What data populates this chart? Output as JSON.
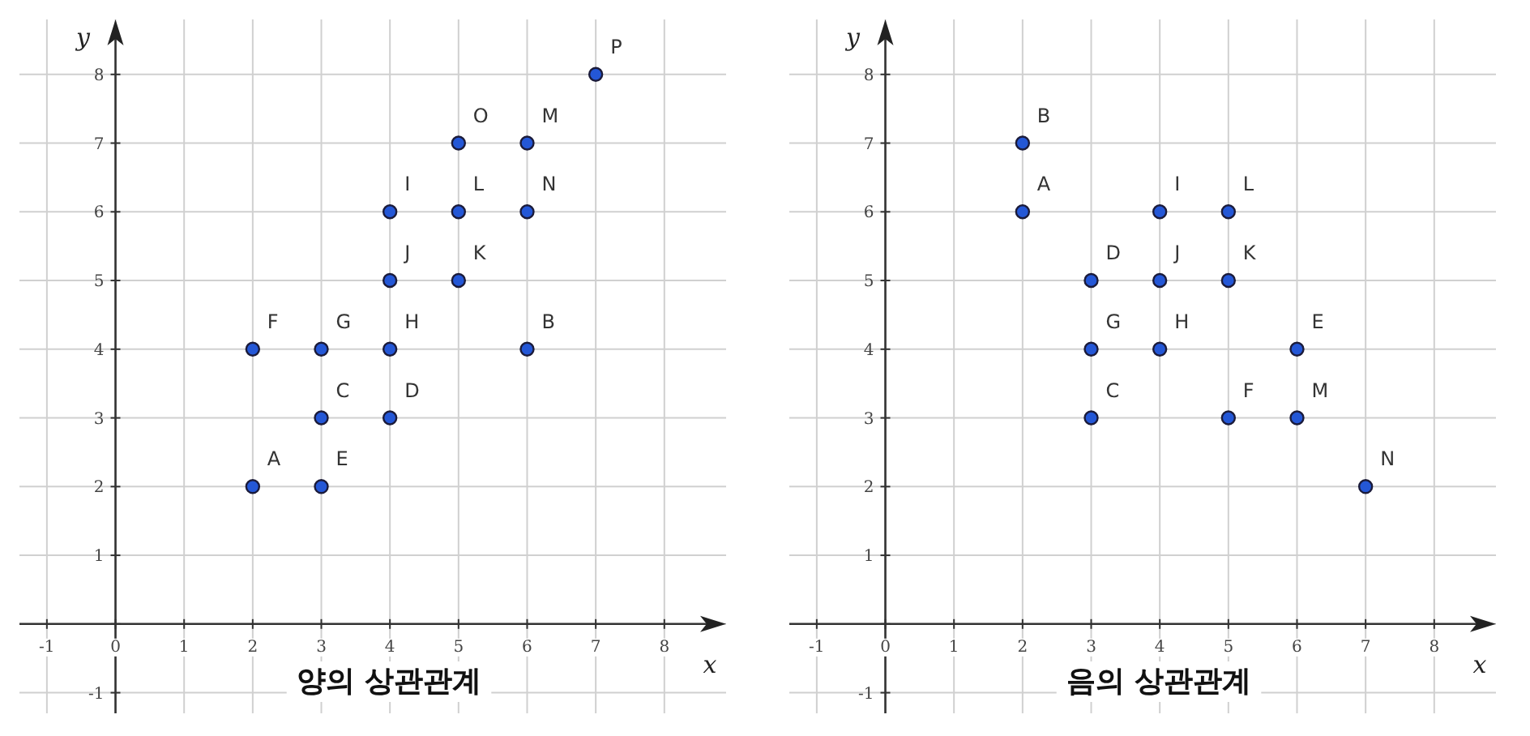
{
  "chart_data": [
    {
      "type": "scatter",
      "title": "양의 상관관계",
      "xlabel": "x",
      "ylabel": "y",
      "xlim": [
        -1.4,
        8.9
      ],
      "ylim": [
        -1.3,
        8.8
      ],
      "grid": true,
      "marker": "circle",
      "xticks": [
        -1,
        {
          "value": 0,
          "label": "0"
        },
        1,
        2,
        3,
        4,
        5,
        6,
        7,
        8
      ],
      "yticks": [
        -1,
        {
          "value": 0,
          "label": null
        },
        1,
        2,
        3,
        4,
        5,
        6,
        7,
        8
      ],
      "series": [
        {
          "color": "#2457d6",
          "x": [
            2,
            6,
            3,
            4,
            3,
            2,
            3,
            4,
            4,
            4,
            5,
            5,
            6,
            6,
            5,
            7
          ],
          "values": [
            2,
            4,
            3,
            3,
            2,
            4,
            4,
            4,
            6,
            5,
            5,
            6,
            7,
            6,
            7,
            8
          ]
        }
      ],
      "annotations": [
        {
          "text": "A",
          "x": 2,
          "y": 2
        },
        {
          "text": "B",
          "x": 6,
          "y": 4
        },
        {
          "text": "C",
          "x": 3,
          "y": 3
        },
        {
          "text": "D",
          "x": 4,
          "y": 3
        },
        {
          "text": "E",
          "x": 3,
          "y": 2
        },
        {
          "text": "F",
          "x": 2,
          "y": 4
        },
        {
          "text": "G",
          "x": 3,
          "y": 4
        },
        {
          "text": "H",
          "x": 4,
          "y": 4
        },
        {
          "text": "I",
          "x": 4,
          "y": 6
        },
        {
          "text": "J",
          "x": 4,
          "y": 5
        },
        {
          "text": "K",
          "x": 5,
          "y": 5
        },
        {
          "text": "L",
          "x": 5,
          "y": 6
        },
        {
          "text": "M",
          "x": 6,
          "y": 7
        },
        {
          "text": "N",
          "x": 6,
          "y": 6
        },
        {
          "text": "O",
          "x": 5,
          "y": 7
        },
        {
          "text": "P",
          "x": 7,
          "y": 8
        }
      ]
    },
    {
      "type": "scatter",
      "title": "음의 상관관계",
      "xlabel": "x",
      "ylabel": "y",
      "xlim": [
        -1.4,
        8.9
      ],
      "ylim": [
        -1.3,
        8.8
      ],
      "grid": true,
      "marker": "circle",
      "xticks": [
        -1,
        {
          "value": 0,
          "label": "0"
        },
        1,
        2,
        3,
        4,
        5,
        6,
        7,
        8
      ],
      "yticks": [
        -1,
        {
          "value": 0,
          "label": null
        },
        1,
        2,
        3,
        4,
        5,
        6,
        7,
        8
      ],
      "series": [
        {
          "color": "#2457d6",
          "x": [
            2,
            2,
            3,
            3,
            6,
            5,
            3,
            4,
            4,
            4,
            5,
            5,
            6,
            7
          ],
          "values": [
            6,
            7,
            3,
            5,
            4,
            3,
            4,
            4,
            6,
            5,
            5,
            6,
            3,
            2
          ]
        }
      ],
      "annotations": [
        {
          "text": "A",
          "x": 2,
          "y": 6
        },
        {
          "text": "B",
          "x": 2,
          "y": 7
        },
        {
          "text": "C",
          "x": 3,
          "y": 3
        },
        {
          "text": "D",
          "x": 3,
          "y": 5
        },
        {
          "text": "E",
          "x": 6,
          "y": 4
        },
        {
          "text": "F",
          "x": 5,
          "y": 3
        },
        {
          "text": "G",
          "x": 3,
          "y": 4
        },
        {
          "text": "H",
          "x": 4,
          "y": 4
        },
        {
          "text": "I",
          "x": 4,
          "y": 6
        },
        {
          "text": "J",
          "x": 4,
          "y": 5
        },
        {
          "text": "K",
          "x": 5,
          "y": 5
        },
        {
          "text": "L",
          "x": 5,
          "y": 6
        },
        {
          "text": "M",
          "x": 6,
          "y": 3
        },
        {
          "text": "N",
          "x": 7,
          "y": 2
        }
      ]
    }
  ]
}
